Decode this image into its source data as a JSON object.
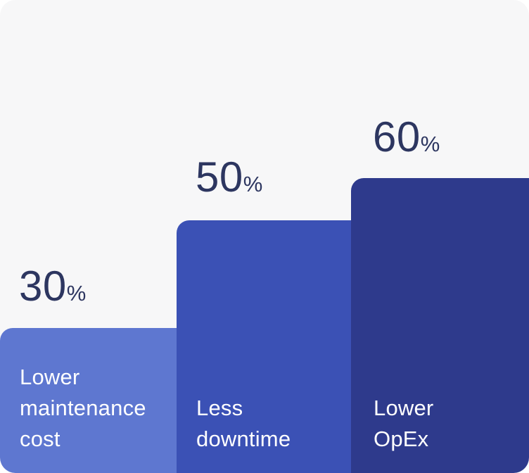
{
  "chart_data": {
    "type": "bar",
    "orientation": "vertical",
    "categories": [
      "Lower maintenance cost",
      "Less downtime",
      "Lower OpEx"
    ],
    "values": [
      30,
      50,
      60
    ],
    "unit": "%",
    "title": "",
    "xlabel": "",
    "ylabel": "",
    "ylim": [
      0,
      100
    ],
    "grid": false,
    "legend": false,
    "bar_colors": [
      "#5e77d0",
      "#3b51b5",
      "#2e3a8c"
    ]
  },
  "colors": {
    "card_background": "#f7f7f8",
    "value_text": "#2d3660",
    "label_text": "#ffffff",
    "bar1": "#5e77d0",
    "bar2": "#3b51b5",
    "bar3": "#2e3a8c"
  },
  "bars": [
    {
      "value": "30",
      "unit": "%",
      "lines": [
        "Lower",
        "maintenance",
        "cost"
      ]
    },
    {
      "value": "50",
      "unit": "%",
      "lines": [
        "Less",
        "downtime"
      ]
    },
    {
      "value": "60",
      "unit": "%",
      "lines": [
        "Lower",
        "OpEx"
      ]
    }
  ]
}
